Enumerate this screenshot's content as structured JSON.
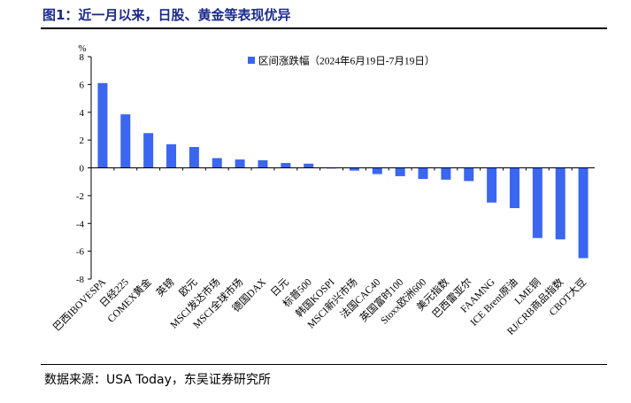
{
  "figure": {
    "title": "图1：近一月以来，日股、黄金等表现优异",
    "source": "数据来源：USA Today，东吴证券研究所"
  },
  "chart_data": {
    "type": "bar",
    "ylabel": "%",
    "ylim": [
      -8,
      8
    ],
    "yticks": [
      -8,
      -6,
      -4,
      -2,
      0,
      2,
      4,
      6,
      8
    ],
    "legend_position": "top",
    "grid": false,
    "bar_color": "#3b66f0",
    "categories": [
      "巴西IBOVESPA",
      "日经225",
      "COMEX黄金",
      "英镑",
      "欧元",
      "MSCI发达市场",
      "MSCI全球市场",
      "德国DAX",
      "日元",
      "标普500",
      "韩国KOSPI",
      "MSCI新兴市场",
      "法国CAC40",
      "英国富时100",
      "Stoxx欧洲600",
      "美元指数",
      "巴西雷亚尔",
      "FAAMNG",
      "ICE Brent原油",
      "LME铜",
      "RJ/CRB商品指数",
      "CBOT大豆"
    ],
    "series": [
      {
        "name": "区间涨跌幅（2024年6月19日-7月19日）",
        "values": [
          6.1,
          3.85,
          2.5,
          1.7,
          1.5,
          0.7,
          0.6,
          0.55,
          0.35,
          0.3,
          -0.05,
          -0.2,
          -0.45,
          -0.6,
          -0.8,
          -0.85,
          -0.95,
          -2.5,
          -2.9,
          -5.05,
          -5.15,
          -6.5
        ]
      }
    ]
  }
}
